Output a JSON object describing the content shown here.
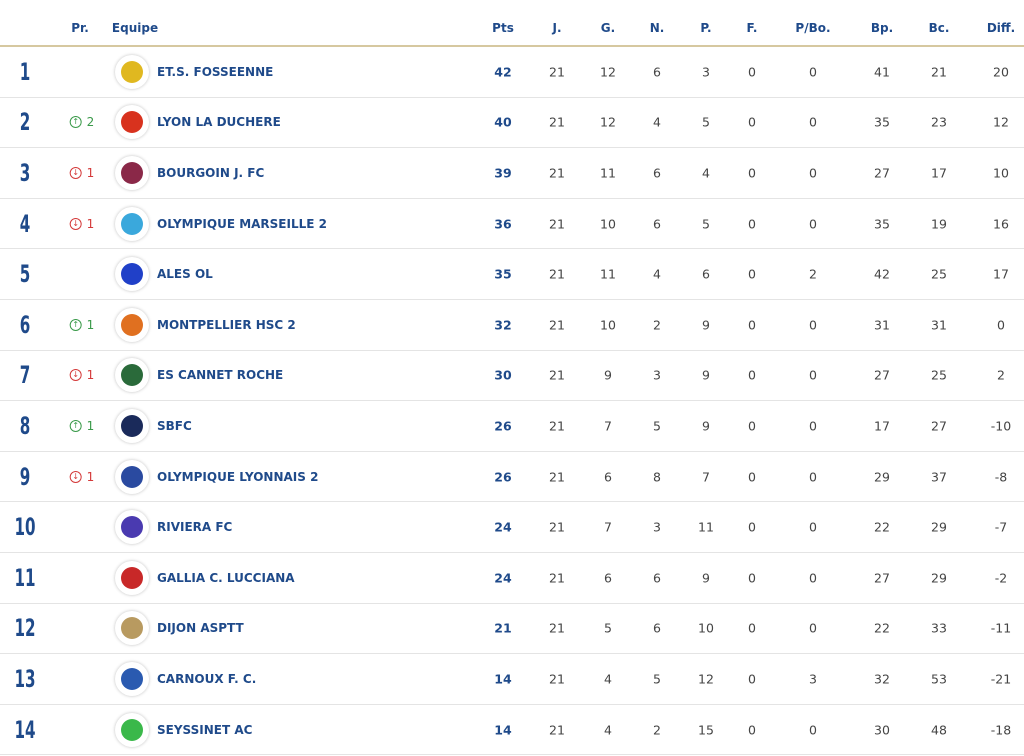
{
  "headers": {
    "pr": "Pr.",
    "team": "Equipe",
    "pts": "Pts",
    "j": "J.",
    "g": "G.",
    "n": "N.",
    "p": "P.",
    "f": "F.",
    "pbo": "P/Bo.",
    "bp": "Bp.",
    "bc": "Bc.",
    "diff": "Diff."
  },
  "colors": {
    "primary": "#1f4a8a",
    "up": "#3a9a4a",
    "down": "#d43a3a",
    "header_line": "#d6c8a0"
  },
  "rows": [
    {
      "rank": "1",
      "move": "",
      "dir": "",
      "team": "ET.S. FOSSEENNE",
      "pts": "42",
      "j": "21",
      "g": "12",
      "n": "6",
      "p": "3",
      "f": "0",
      "pbo": "0",
      "bp": "41",
      "bc": "21",
      "diff": "20",
      "logo": "#e0b820"
    },
    {
      "rank": "2",
      "move": "2",
      "dir": "up",
      "team": "LYON LA DUCHERE",
      "pts": "40",
      "j": "21",
      "g": "12",
      "n": "4",
      "p": "5",
      "f": "0",
      "pbo": "0",
      "bp": "35",
      "bc": "23",
      "diff": "12",
      "logo": "#d8321e"
    },
    {
      "rank": "3",
      "move": "1",
      "dir": "down",
      "team": "BOURGOIN J. FC",
      "pts": "39",
      "j": "21",
      "g": "11",
      "n": "6",
      "p": "4",
      "f": "0",
      "pbo": "0",
      "bp": "27",
      "bc": "17",
      "diff": "10",
      "logo": "#8a2848"
    },
    {
      "rank": "4",
      "move": "1",
      "dir": "down",
      "team": "OLYMPIQUE MARSEILLE 2",
      "pts": "36",
      "j": "21",
      "g": "10",
      "n": "6",
      "p": "5",
      "f": "0",
      "pbo": "0",
      "bp": "35",
      "bc": "19",
      "diff": "16",
      "logo": "#3aa8dc"
    },
    {
      "rank": "5",
      "move": "",
      "dir": "",
      "team": "ALES OL",
      "pts": "35",
      "j": "21",
      "g": "11",
      "n": "4",
      "p": "6",
      "f": "0",
      "pbo": "2",
      "bp": "42",
      "bc": "25",
      "diff": "17",
      "logo": "#2040c8"
    },
    {
      "rank": "6",
      "move": "1",
      "dir": "up",
      "team": "MONTPELLIER HSC 2",
      "pts": "32",
      "j": "21",
      "g": "10",
      "n": "2",
      "p": "9",
      "f": "0",
      "pbo": "0",
      "bp": "31",
      "bc": "31",
      "diff": "0",
      "logo": "#e07020"
    },
    {
      "rank": "7",
      "move": "1",
      "dir": "down",
      "team": "ES CANNET ROCHE",
      "pts": "30",
      "j": "21",
      "g": "9",
      "n": "3",
      "p": "9",
      "f": "0",
      "pbo": "0",
      "bp": "27",
      "bc": "25",
      "diff": "2",
      "logo": "#2a6a3a"
    },
    {
      "rank": "8",
      "move": "1",
      "dir": "up",
      "team": "SBFC",
      "pts": "26",
      "j": "21",
      "g": "7",
      "n": "5",
      "p": "9",
      "f": "0",
      "pbo": "0",
      "bp": "17",
      "bc": "27",
      "diff": "-10",
      "logo": "#1a2a5a"
    },
    {
      "rank": "9",
      "move": "1",
      "dir": "down",
      "team": "OLYMPIQUE LYONNAIS 2",
      "pts": "26",
      "j": "21",
      "g": "6",
      "n": "8",
      "p": "7",
      "f": "0",
      "pbo": "0",
      "bp": "29",
      "bc": "37",
      "diff": "-8",
      "logo": "#2a4aa0"
    },
    {
      "rank": "10",
      "move": "",
      "dir": "",
      "team": "RIVIERA FC",
      "pts": "24",
      "j": "21",
      "g": "7",
      "n": "3",
      "p": "11",
      "f": "0",
      "pbo": "0",
      "bp": "22",
      "bc": "29",
      "diff": "-7",
      "logo": "#4a3ab0"
    },
    {
      "rank": "11",
      "move": "",
      "dir": "",
      "team": "GALLIA C. LUCCIANA",
      "pts": "24",
      "j": "21",
      "g": "6",
      "n": "6",
      "p": "9",
      "f": "0",
      "pbo": "0",
      "bp": "27",
      "bc": "29",
      "diff": "-2",
      "logo": "#c82828"
    },
    {
      "rank": "12",
      "move": "",
      "dir": "",
      "team": "DIJON ASPTT",
      "pts": "21",
      "j": "21",
      "g": "5",
      "n": "6",
      "p": "10",
      "f": "0",
      "pbo": "0",
      "bp": "22",
      "bc": "33",
      "diff": "-11",
      "logo": "#b89a60"
    },
    {
      "rank": "13",
      "move": "",
      "dir": "",
      "team": "CARNOUX F. C.",
      "pts": "14",
      "j": "21",
      "g": "4",
      "n": "5",
      "p": "12",
      "f": "0",
      "pbo": "3",
      "bp": "32",
      "bc": "53",
      "diff": "-21",
      "logo": "#2a5ab0"
    },
    {
      "rank": "14",
      "move": "",
      "dir": "",
      "team": "SEYSSINET AC",
      "pts": "14",
      "j": "21",
      "g": "4",
      "n": "2",
      "p": "15",
      "f": "0",
      "pbo": "0",
      "bp": "30",
      "bc": "48",
      "diff": "-18",
      "logo": "#3ab84a"
    }
  ]
}
